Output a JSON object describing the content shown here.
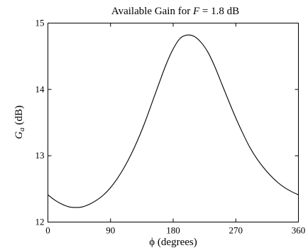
{
  "chart_data": {
    "type": "line",
    "title_prefix": "Available Gain for ",
    "title_var": "F",
    "title_suffix": " = 1.8 dB",
    "xlabel_symbol": "ϕ",
    "xlabel_text": " (degrees)",
    "ylabel_symbol": "G",
    "ylabel_sub": "a",
    "ylabel_text": "  (dB)",
    "xlim": [
      0,
      360
    ],
    "ylim": [
      12,
      15
    ],
    "xticks": [
      0,
      90,
      180,
      270,
      360
    ],
    "yticks": [
      12,
      13,
      14,
      15
    ],
    "grid": false,
    "series": [
      {
        "x": [
          0,
          10,
          20,
          30,
          40,
          50,
          60,
          70,
          80,
          90,
          100,
          110,
          120,
          130,
          140,
          150,
          160,
          170,
          180,
          190,
          200,
          210,
          220,
          230,
          240,
          250,
          260,
          270,
          280,
          290,
          300,
          310,
          320,
          330,
          340,
          350,
          360
        ],
        "y": [
          12.41,
          12.33,
          12.27,
          12.23,
          12.22,
          12.23,
          12.27,
          12.33,
          12.41,
          12.52,
          12.66,
          12.83,
          13.03,
          13.26,
          13.52,
          13.81,
          14.1,
          14.38,
          14.61,
          14.77,
          14.82,
          14.8,
          14.71,
          14.56,
          14.34,
          14.08,
          13.82,
          13.57,
          13.34,
          13.13,
          12.96,
          12.82,
          12.7,
          12.6,
          12.52,
          12.46,
          12.41
        ]
      }
    ]
  }
}
